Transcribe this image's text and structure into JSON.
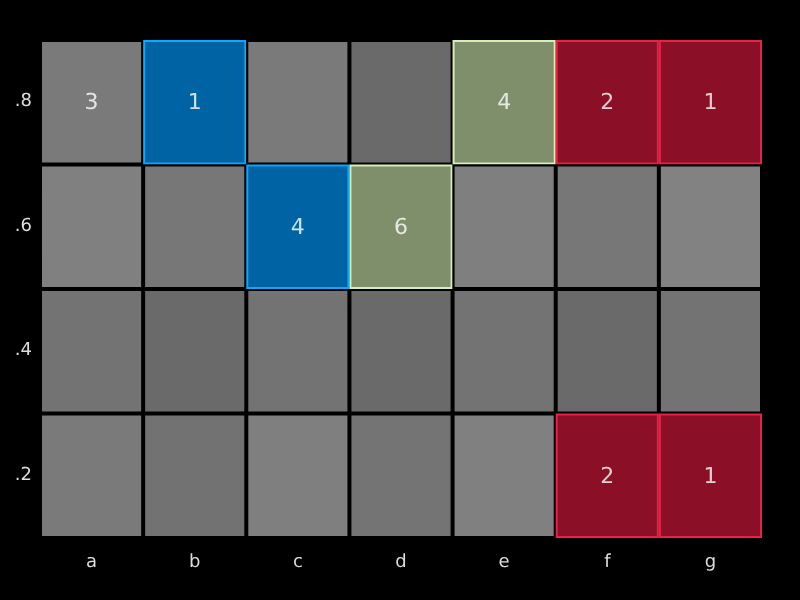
{
  "chart_data": {
    "type": "heatmap",
    "data_labels": true,
    "categories": [
      "a",
      "b",
      "c",
      "d",
      "e",
      "f",
      "g"
    ],
    "y_categories": [
      ".8",
      ".6",
      ".4",
      ".2"
    ],
    "cells": [
      [
        3,
        1,
        null,
        null,
        4,
        2,
        1
      ],
      [
        null,
        null,
        4,
        6,
        null,
        null,
        null
      ],
      [
        null,
        null,
        null,
        null,
        null,
        null,
        null
      ],
      [
        null,
        null,
        null,
        null,
        null,
        2,
        1
      ]
    ],
    "colors": [
      [
        "#7a7a7a",
        "#0063a3",
        "#7a7a7a",
        "#6a6a6a",
        "#7f8f6b",
        "#8b0f26",
        "#8b0f26"
      ],
      [
        "#808080",
        "#777777",
        "#0063a3",
        "#7f8f6b",
        "#7f7f7f",
        "#777777",
        "#828282"
      ],
      [
        "#737373",
        "#6a6a6a",
        "#737373",
        "#6a6a6a",
        "#737373",
        "#6a6a6a",
        "#737373"
      ],
      [
        "#7a7a7a",
        "#727272",
        "#7f7f7f",
        "#747474",
        "#808080",
        "#8b0f26",
        "#8b0f26"
      ]
    ]
  }
}
